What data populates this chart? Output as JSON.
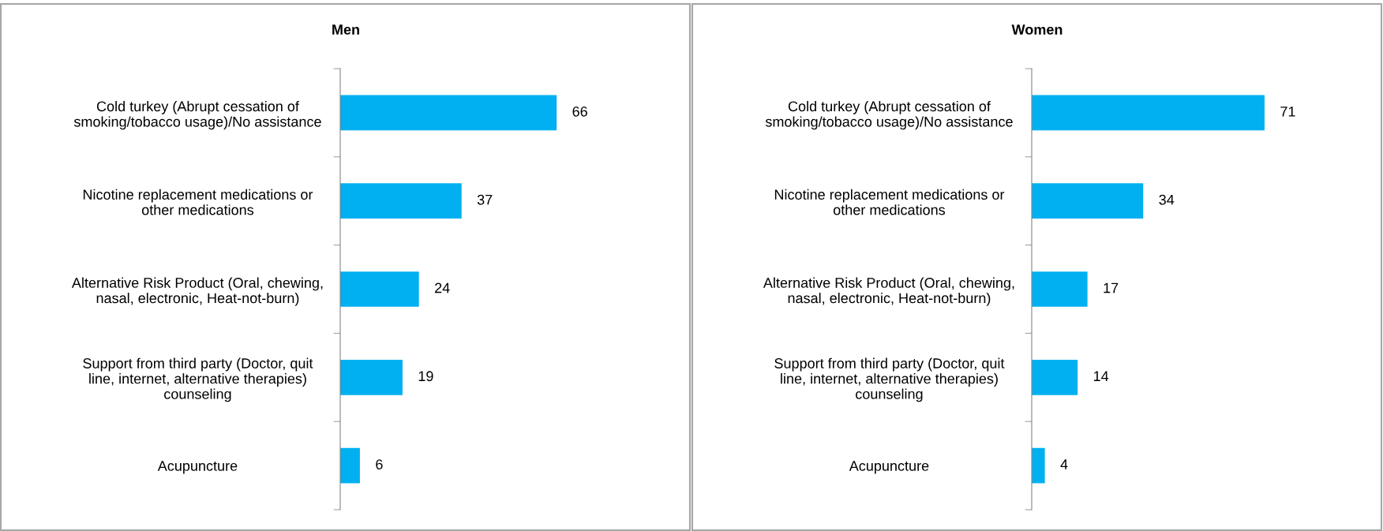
{
  "chart_data": [
    {
      "type": "bar",
      "orientation": "horizontal",
      "title": "Men",
      "categories": [
        "Cold turkey (Abrupt cessation of\nsmoking/tobacco usage)/No assistance",
        "Nicotine replacement medications or\nother medications",
        "Alternative Risk Product (Oral, chewing,\nnasal, electronic, Heat-not-burn)",
        "Support from third party (Doctor, quit\nline, internet, alternative therapies)\ncounseling",
        "Acupuncture"
      ],
      "values": [
        66,
        37,
        24,
        19,
        6
      ],
      "color": "#00b0f0",
      "data_labels": true,
      "grid": false,
      "legend": false
    },
    {
      "type": "bar",
      "orientation": "horizontal",
      "title": "Women",
      "categories": [
        "Cold turkey (Abrupt cessation of\nsmoking/tobacco usage)/No assistance",
        "Nicotine replacement medications or\nother medications",
        "Alternative Risk Product (Oral, chewing,\nnasal, electronic, Heat-not-burn)",
        "Support from third party (Doctor, quit\nline, internet, alternative therapies)\ncounseling",
        "Acupuncture"
      ],
      "values": [
        71,
        34,
        17,
        14,
        4
      ],
      "color": "#00b0f0",
      "data_labels": true,
      "grid": false,
      "legend": false
    }
  ]
}
